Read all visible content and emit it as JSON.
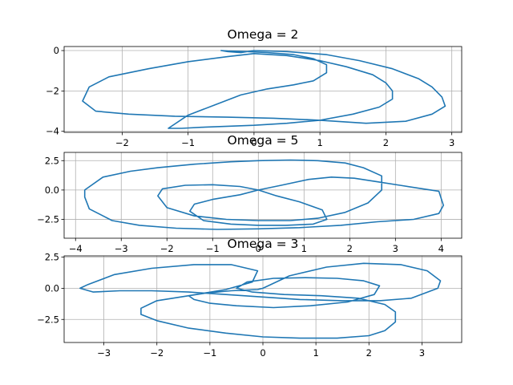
{
  "chart_data": [
    {
      "type": "line",
      "title": "Omega = 2",
      "xlabel": "",
      "ylabel": "",
      "xlim": [
        -2.88,
        3.15
      ],
      "ylim": [
        -4.05,
        0.2
      ],
      "xticks": [
        -2,
        -1,
        0,
        1,
        2,
        3
      ],
      "yticks": [
        0,
        -2,
        -4
      ],
      "xtick_labels": [
        "−2",
        "−1",
        "0",
        "1",
        "2",
        "3"
      ],
      "ytick_labels": [
        "0",
        "−2",
        "−4"
      ],
      "grid": true,
      "color": "#1f77b4",
      "series": [
        {
          "x": [
            0,
            0.5,
            1.1,
            1.6,
            2.1,
            2.5,
            2.7,
            2.85,
            2.9,
            2.7,
            2.3,
            1.7,
            1.0,
            0.3,
            -0.4,
            -1.2,
            -1.9,
            -2.4,
            -2.6,
            -2.5,
            -2.2,
            -1.6,
            -1.0,
            -0.4,
            0,
            0.5,
            1.0,
            1.4,
            1.8,
            2.0,
            2.1,
            2.1,
            1.9,
            1.5,
            1.0,
            0.5,
            0,
            -0.4,
            -0.8,
            -1.1,
            -1.3,
            -1.0,
            -0.6,
            -0.2,
            0.2,
            0.6,
            0.9,
            1.1,
            1.1,
            0.9,
            0.6,
            0.2,
            -0.1,
            -0.4,
            -0.5,
            -0.4,
            -0.2,
            0
          ],
          "y": [
            0,
            -0.05,
            -0.2,
            -0.5,
            -0.9,
            -1.4,
            -1.8,
            -2.3,
            -2.75,
            -3.15,
            -3.5,
            -3.6,
            -3.45,
            -3.35,
            -3.3,
            -3.25,
            -3.15,
            -3.0,
            -2.5,
            -1.8,
            -1.3,
            -0.9,
            -0.55,
            -0.3,
            -0.15,
            -0.25,
            -0.5,
            -0.8,
            -1.2,
            -1.6,
            -2.0,
            -2.4,
            -2.8,
            -3.15,
            -3.45,
            -3.6,
            -3.7,
            -3.75,
            -3.8,
            -3.85,
            -3.85,
            -3.2,
            -2.7,
            -2.2,
            -1.9,
            -1.7,
            -1.5,
            -1.1,
            -0.7,
            -0.4,
            -0.2,
            -0.1,
            -0.05,
            -0.02,
            0,
            -0.05,
            -0.1,
            0
          ]
        }
      ]
    },
    {
      "type": "line",
      "title": "Omega = 5",
      "xlabel": "",
      "ylabel": "",
      "xlim": [
        -4.25,
        4.45
      ],
      "ylim": [
        -4.1,
        3.2
      ],
      "xticks": [
        -4,
        -3,
        -2,
        -1,
        0,
        1,
        2,
        3,
        4
      ],
      "yticks": [
        2.5,
        0.0,
        -2.5
      ],
      "xtick_labels": [
        "−4",
        "−3",
        "−2",
        "−1",
        "0",
        "1",
        "2",
        "3",
        "4"
      ],
      "ytick_labels": [
        "2.5",
        "0.0",
        "−2.5"
      ],
      "grid": true,
      "color": "#1f77b4",
      "series": [
        {
          "x": [
            0,
            0.5,
            1.1,
            1.6,
            2.1,
            2.6,
            3.1,
            3.6,
            3.95,
            4.05,
            3.95,
            3.4,
            2.6,
            1.8,
            0.9,
            0,
            -0.9,
            -1.8,
            -2.6,
            -3.2,
            -3.7,
            -3.8,
            -3.8,
            -3.4,
            -2.8,
            -2.2,
            -1.4,
            -0.6,
            0,
            0.7,
            1.3,
            1.9,
            2.3,
            2.7,
            2.7,
            2.4,
            1.9,
            1.3,
            0.7,
            0,
            -0.7,
            -1.4,
            -2.0,
            -2.2,
            -2.1,
            -1.6,
            -1.0,
            -0.4,
            0,
            0.4,
            0.9,
            1.4,
            1.5,
            1.2,
            0.6,
            0,
            -0.6,
            -1.2,
            -1.5,
            -1.4,
            -1.0,
            -0.4,
            0
          ],
          "y": [
            0,
            0.4,
            0.9,
            1.1,
            1.0,
            0.7,
            0.4,
            0.1,
            -0.1,
            -1.3,
            -2.0,
            -2.5,
            -2.7,
            -3.0,
            -3.2,
            -3.3,
            -3.35,
            -3.25,
            -3.0,
            -2.6,
            -1.6,
            -0.6,
            0,
            1.1,
            1.6,
            1.9,
            2.2,
            2.4,
            2.5,
            2.55,
            2.5,
            2.3,
            1.9,
            1.2,
            0,
            -1.1,
            -1.9,
            -2.4,
            -2.6,
            -2.6,
            -2.5,
            -2.2,
            -1.5,
            -0.5,
            0.1,
            0.4,
            0.45,
            0.3,
            0,
            -0.5,
            -1.0,
            -1.7,
            -2.5,
            -2.9,
            -3.0,
            -3.0,
            -2.9,
            -2.6,
            -1.8,
            -1.2,
            -0.8,
            -0.4,
            0
          ]
        }
      ]
    },
    {
      "type": "line",
      "title": "Omega = 3",
      "xlabel": "",
      "ylabel": "",
      "xlim": [
        -3.75,
        3.75
      ],
      "ylim": [
        -4.35,
        2.6
      ],
      "xticks": [
        -3,
        -2,
        -1,
        0,
        1,
        2,
        3
      ],
      "yticks": [
        2.5,
        0.0,
        -2.5
      ],
      "xtick_labels": [
        "−3",
        "−2",
        "−1",
        "0",
        "1",
        "2",
        "3"
      ],
      "ytick_labels": [
        "2.5",
        "0.0",
        "−2.5"
      ],
      "grid": true,
      "color": "#1f77b4",
      "series": [
        {
          "x": [
            0,
            0.5,
            1.2,
            1.9,
            2.6,
            3.1,
            3.35,
            3.3,
            2.8,
            2.2,
            1.5,
            0.7,
            0,
            -0.7,
            -1.4,
            -2.1,
            -2.7,
            -3.2,
            -3.45,
            -3.3,
            -2.8,
            -2.1,
            -1.3,
            -0.6,
            -0.1,
            -0.2,
            -0.7,
            -1.4,
            -2.0,
            -2.3,
            -2.3,
            -2.0,
            -1.4,
            -0.7,
            0,
            0.7,
            1.4,
            2.0,
            2.3,
            2.5,
            2.5,
            2.3,
            1.8,
            1.1,
            0.4,
            -0.2,
            -0.5,
            -0.3,
            0.2,
            0.8,
            1.4,
            1.9,
            2.2,
            2.1,
            1.6,
            0.9,
            0.2,
            -0.5,
            -1.0,
            -1.3,
            -1.4,
            -1.1,
            -0.6,
            -0.1,
            0
          ],
          "y": [
            0,
            1.0,
            1.7,
            2.0,
            1.9,
            1.4,
            0.6,
            0,
            -0.8,
            -1.0,
            -1.0,
            -0.9,
            -0.7,
            -0.5,
            -0.3,
            -0.2,
            -0.2,
            -0.3,
            0,
            0.3,
            1.1,
            1.6,
            1.9,
            1.9,
            1.4,
            0.5,
            -0.1,
            -0.6,
            -1.0,
            -1.6,
            -2.1,
            -2.6,
            -3.2,
            -3.6,
            -3.9,
            -4.0,
            -4.0,
            -3.8,
            -3.4,
            -2.7,
            -1.9,
            -1.3,
            -0.8,
            -0.6,
            -0.5,
            -0.3,
            0,
            0.5,
            0.8,
            0.85,
            0.8,
            0.6,
            0.2,
            -0.5,
            -1.1,
            -1.4,
            -1.55,
            -1.4,
            -1.2,
            -0.9,
            -0.6,
            -0.4,
            -0.2,
            -0.1,
            0
          ]
        }
      ]
    }
  ]
}
